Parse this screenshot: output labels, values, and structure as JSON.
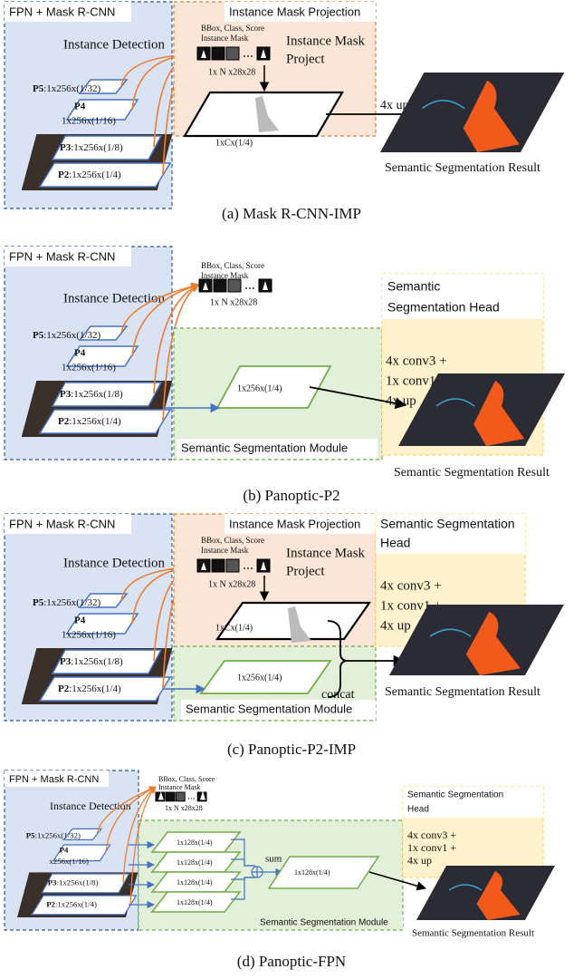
{
  "panels": [
    {
      "caption": "(a) Mask R-CNN-IMP",
      "fpn": "FPN + Mask R-CNN",
      "detection": "Instance Detection",
      "levels": [
        {
          "name": "P5",
          "size": ":1x256x(1/32)"
        },
        {
          "name": "P4",
          "size": "1x256x(1/16)"
        },
        {
          "name": "P3",
          "size": ":1x256x(1/8)"
        },
        {
          "name": "P2",
          "size": ":1x256x(1/4)"
        }
      ],
      "imp_title": "Instance Mask Projection",
      "bbox": "BBox, Class, Score",
      "mask": "Instance Mask",
      "mask_size": "1x N x28x28",
      "project": [
        "Instance Mask",
        "Project"
      ],
      "projection_size": "1xCx(1/4)",
      "up": "4x up",
      "result": "Semantic Segmentation Result"
    },
    {
      "caption": "(b) Panoptic-P2",
      "fpn": "FPN + Mask R-CNN",
      "detection": "Instance Detection",
      "levels": [
        {
          "name": "P5",
          "size": ":1x256x(1/32)"
        },
        {
          "name": "P4",
          "size": "1x256x(1/16)"
        },
        {
          "name": "P3",
          "size": ":1x256x(1/8)"
        },
        {
          "name": "P2",
          "size": ":1x256x(1/4)"
        }
      ],
      "bbox": "BBox, Class, Score",
      "mask": "Instance Mask",
      "mask_size": "1x N x28x28",
      "head": [
        "Semantic",
        "Segmentation Head"
      ],
      "head_ops": [
        "4x conv3 +",
        "1x conv1 +",
        "4x up"
      ],
      "feature_size": "1x256x(1/4)",
      "module": "Semantic Segmentation Module",
      "result": "Semantic Segmentation Result"
    },
    {
      "caption": "(c) Panoptic-P2-IMP",
      "fpn": "FPN + Mask R-CNN",
      "detection": "Instance Detection",
      "levels": [
        {
          "name": "P5",
          "size": ":1x256x(1/32)"
        },
        {
          "name": "P4",
          "size": "1x256x(1/16)"
        },
        {
          "name": "P3",
          "size": ":1x256x(1/8)"
        },
        {
          "name": "P2",
          "size": ":1x256x(1/4)"
        }
      ],
      "imp_title": "Instance Mask Projection",
      "bbox": "BBox, Class, Score",
      "mask": "Instance Mask",
      "mask_size": "1x N x28x28",
      "project": [
        "Instance Mask",
        "Project"
      ],
      "projection_size": "1xCx(1/4)",
      "head": [
        "Semantic Segmentation",
        "Head"
      ],
      "head_ops": [
        "4x conv3 +",
        "1x conv1 +",
        "4x up"
      ],
      "feature_size": "1x256x(1/4)",
      "concat": "concat",
      "module": "Semantic Segmentation Module",
      "result": "Semantic Segmentation Result"
    },
    {
      "caption": "(d) Panoptic-FPN",
      "fpn": "FPN + Mask R-CNN",
      "detection": "Instance Detection",
      "levels": [
        {
          "name": "P5",
          "size": ":1x256x(1/32)"
        },
        {
          "name": "P4",
          "size": "x256x(1/16)"
        },
        {
          "name": "P3",
          "size": ":1x256x(1/8)"
        },
        {
          "name": "P2",
          "size": ":1x256x(1/4)"
        }
      ],
      "bbox": "BBox, Class, Score",
      "mask": "Instance Mask",
      "mask_size": "1x N x28x28",
      "branch_sizes": [
        "1x128x(1/4)",
        "1x128x(1/4)",
        "1x128x(1/4)",
        "1x128x(1/4)"
      ],
      "sum": "sum",
      "feature_size": "1x128x(1/4)",
      "head": [
        "Semantic Segmentation",
        "Head"
      ],
      "head_ops": [
        "4x conv3 +",
        "1x conv1 +",
        "4x up"
      ],
      "module": "Semantic Segmentation Module",
      "result": "Semantic Segmentation Result"
    }
  ]
}
